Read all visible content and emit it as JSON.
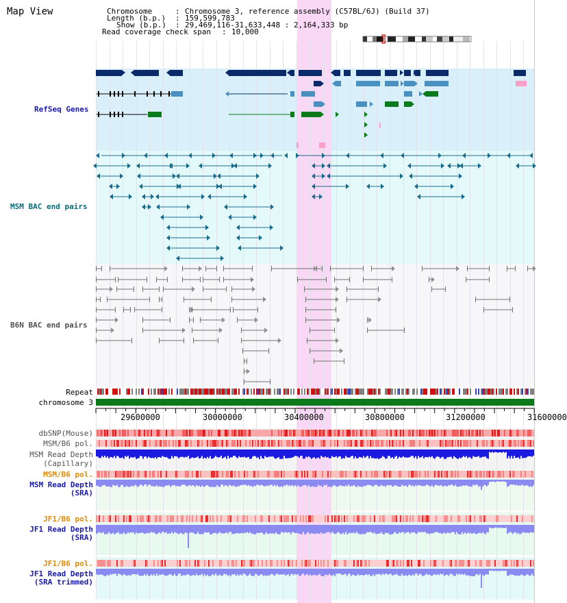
{
  "header": {
    "title": "Map View",
    "chromosome_key": "Chromosome",
    "chromosome_val": "Chromosome 3, reference assembly (C57BL/6J) (Build 37)",
    "length_key": "Length (b.p.)",
    "length_val": "159,599,783",
    "show_key": "Show (b.p.)",
    "show_val": "29,469,116-31,633,448 : 2,164,333 bp",
    "coverage_key": "Read coverage check span",
    "coverage_val": "10,000"
  },
  "tracks": {
    "refseq": "RefSeq Genes",
    "msm_bac": "MSM BAC end pairs",
    "b6n_bac": "B6N BAC end pairs",
    "repeat": "Repeat",
    "chromosome": "chromosome 3",
    "dbsnp": "dbSNP(Mouse)",
    "msm_pol": "MSM/B6 pol.",
    "msm_depth_cap_1": "MSM Read Depth",
    "msm_depth_cap_2": "(Capillary)",
    "msm_pol_2": "MSM/B6 pol.",
    "msm_depth_sra_1": "MSM Read Depth",
    "msm_depth_sra_2": "(SRA)",
    "jf1_pol": "JF1/B6 pol.",
    "jf1_depth_1": "JF1 Read Depth",
    "jf1_depth_2": "(SRA)",
    "jf1_pol_2": "JF1/B6 pol.",
    "jf1_trim_1": "JF1 Read Depth",
    "jf1_trim_2": "(SRA trimmed)"
  },
  "axis": {
    "ticks": [
      "29600000",
      "30000000",
      "30400000",
      "30800000",
      "31200000",
      "31600000"
    ]
  },
  "colors": {
    "refseq_bg": "#d9f0fa",
    "msm_bg": "#e4fafa",
    "highlight": "#f8d8f4",
    "refseq_dark": "#0a2a6a",
    "refseq_mid": "#4a90c0",
    "refseq_green": "#0a7a1a",
    "msm_line": "#1a6a8a",
    "b6n_line": "#707070",
    "chrom_green": "#0a7a1a",
    "depth_blue": "#1a1ae0",
    "depth_light": "#8a8af0",
    "label_blue": "#1a1aaa",
    "label_teal": "#0a6a7a",
    "label_orange": "#e08a00"
  }
}
